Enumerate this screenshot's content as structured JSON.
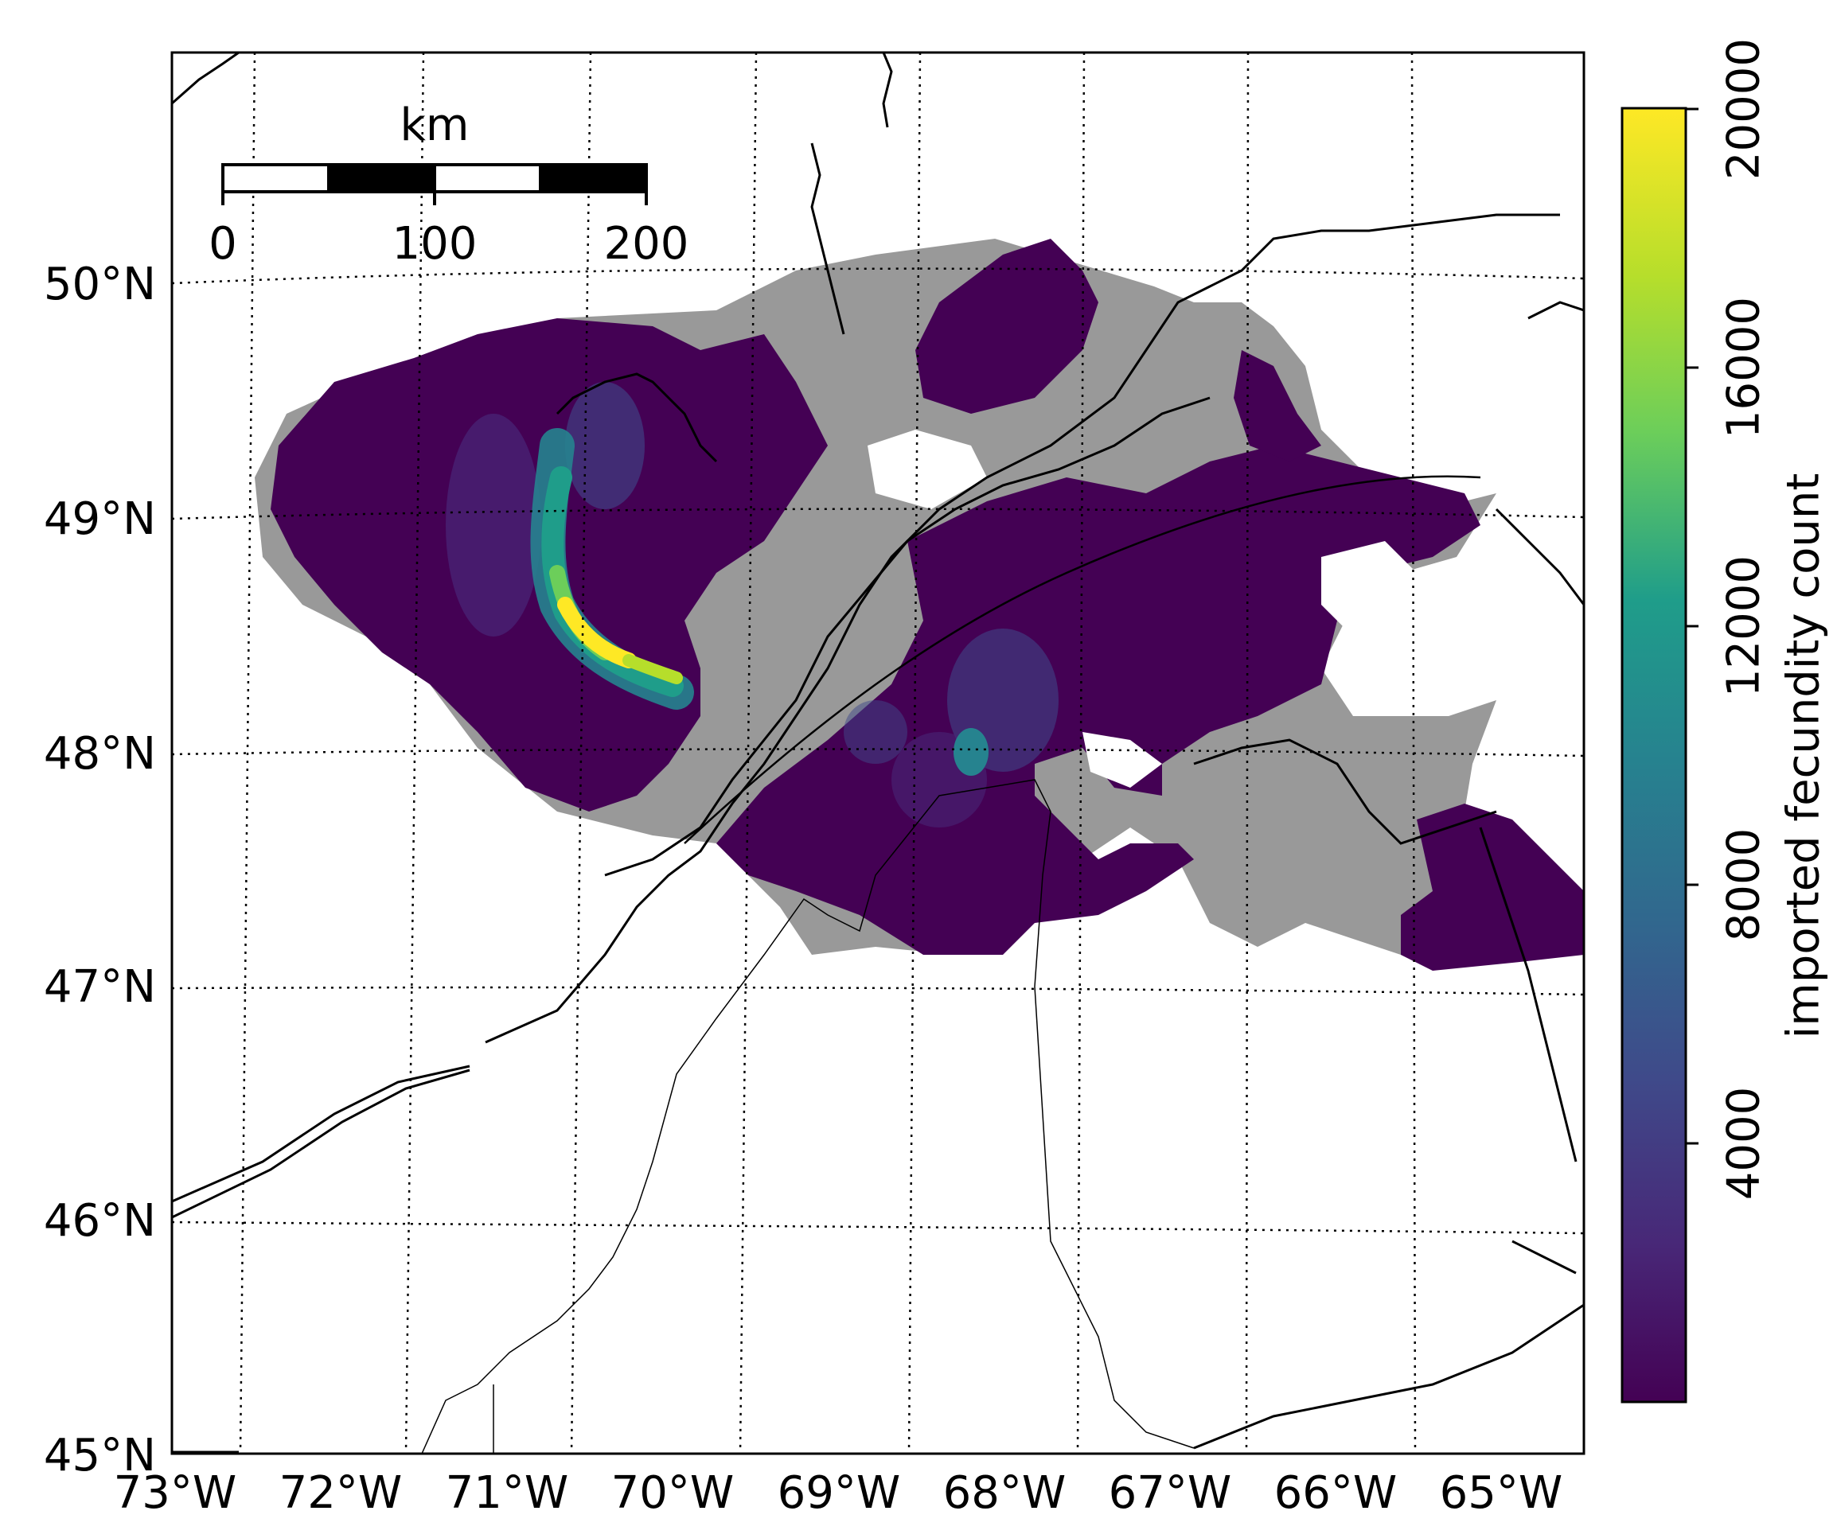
{
  "map": {
    "lon_ticks": [
      "73°W",
      "72°W",
      "71°W",
      "70°W",
      "69°W",
      "68°W",
      "67°W",
      "66°W",
      "65°W"
    ],
    "lat_ticks": [
      "45°N",
      "46°N",
      "47°N",
      "48°N",
      "49°N",
      "50°N"
    ],
    "extent": {
      "lon_min": -73,
      "lon_max": -64.6,
      "lat_min": 45,
      "lat_max": 51
    },
    "graticule": "dotted",
    "hexbin_colors": {
      "no_data_gray": "#999999",
      "outline": "#000000"
    }
  },
  "scale_bar": {
    "unit": "km",
    "labels": [
      "0",
      "100",
      "200"
    ]
  },
  "colorbar": {
    "label": "imported fecundity count",
    "ticks": [
      "4000",
      "8000",
      "12000",
      "16000",
      "20000"
    ],
    "min": 0,
    "max": 20000,
    "colormap": "viridis",
    "stops": [
      "#440154",
      "#482777",
      "#3f4a8a",
      "#31678e",
      "#26838f",
      "#1f9d8a",
      "#6cce5a",
      "#b6de2b",
      "#fee825"
    ]
  },
  "chart_data": {
    "type": "heatmap",
    "title": "",
    "xlabel": "",
    "ylabel": "",
    "colorbar_label": "imported fecundity count",
    "xlim": [
      -73,
      -64.6
    ],
    "ylim": [
      45,
      51
    ],
    "clim": [
      0,
      20000
    ],
    "hotspots": [
      {
        "lon": -70.6,
        "lat": 48.6,
        "value": 20000
      },
      {
        "lon": -70.7,
        "lat": 48.9,
        "value": 14000
      },
      {
        "lon": -70.2,
        "lat": 48.3,
        "value": 16000
      },
      {
        "lon": -68.2,
        "lat": 48.0,
        "value": 10000
      },
      {
        "lon": -70.6,
        "lat": 49.2,
        "value": 8000
      }
    ]
  }
}
